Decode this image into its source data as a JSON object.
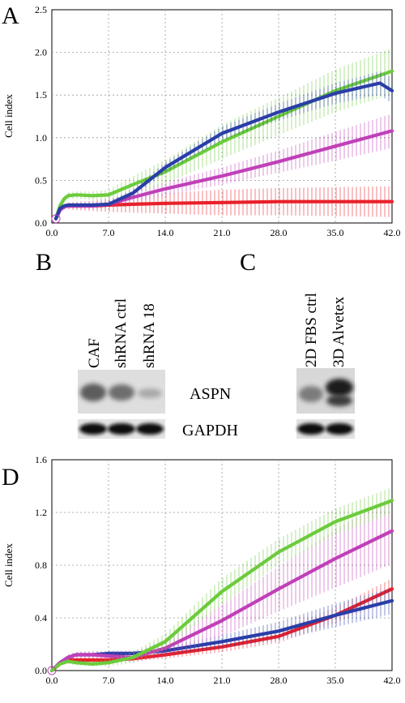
{
  "panels": {
    "A": "A",
    "B": "B",
    "C": "C",
    "D": "D"
  },
  "blots": {
    "B": {
      "lanes": [
        "CAF",
        "shRNA ctrl",
        "shRNA 18"
      ],
      "aspn_intensity": [
        0.75,
        0.65,
        0.3
      ],
      "gapdh_intensity": [
        1.0,
        1.0,
        1.0
      ]
    },
    "C": {
      "lanes": [
        "2D FBS ctrl",
        "3D Alvetex"
      ],
      "aspn_intensity": [
        0.55,
        1.0
      ],
      "gapdh_intensity": [
        1.0,
        1.0
      ]
    },
    "bands": [
      "ASPN",
      "GAPDH"
    ]
  },
  "chart_data": [
    {
      "panel": "A",
      "type": "line",
      "ylabel": "Cell index",
      "xlabel": "",
      "xlim": [
        0,
        42
      ],
      "ylim": [
        0,
        2.5
      ],
      "xticks": [
        "0.0",
        "7.0",
        "14.0",
        "21.0",
        "28.0",
        "35.0",
        "42.0"
      ],
      "yticks": [
        "0.0",
        "0.5",
        "1.0",
        "1.5",
        "2.0",
        "2.5"
      ],
      "grid": true,
      "series": [
        {
          "color": "#e8202a",
          "x": [
            0.5,
            1,
            1.5,
            2,
            3,
            5,
            7,
            10,
            14,
            21,
            28,
            35,
            42
          ],
          "y": [
            0.05,
            0.15,
            0.19,
            0.2,
            0.2,
            0.2,
            0.21,
            0.22,
            0.23,
            0.24,
            0.25,
            0.25,
            0.25
          ],
          "err": [
            0,
            0.02,
            0.03,
            0.04,
            0.05,
            0.06,
            0.08,
            0.1,
            0.12,
            0.15,
            0.16,
            0.17,
            0.18
          ]
        },
        {
          "color": "#c040b8",
          "x": [
            0.5,
            1,
            1.5,
            2,
            3,
            5,
            7,
            10,
            14,
            21,
            28,
            35,
            42
          ],
          "y": [
            0.05,
            0.15,
            0.19,
            0.2,
            0.2,
            0.2,
            0.22,
            0.3,
            0.4,
            0.55,
            0.72,
            0.9,
            1.08
          ],
          "err": [
            0,
            0.02,
            0.03,
            0.03,
            0.03,
            0.04,
            0.05,
            0.07,
            0.08,
            0.1,
            0.13,
            0.17,
            0.2
          ]
        },
        {
          "color": "#6ccb3c",
          "x": [
            0.5,
            1,
            1.5,
            2,
            3,
            5,
            7,
            10,
            14,
            21,
            28,
            35,
            42
          ],
          "y": [
            0.05,
            0.2,
            0.28,
            0.32,
            0.33,
            0.32,
            0.33,
            0.45,
            0.6,
            0.95,
            1.25,
            1.55,
            1.78
          ],
          "err": [
            0,
            0.02,
            0.03,
            0.04,
            0.04,
            0.05,
            0.06,
            0.1,
            0.14,
            0.2,
            0.22,
            0.25,
            0.27
          ]
        },
        {
          "color": "#2a3ea8",
          "x": [
            0.5,
            1,
            1.5,
            2,
            3,
            5,
            7,
            10,
            14,
            21,
            28,
            35,
            40.5,
            42
          ],
          "y": [
            0.05,
            0.17,
            0.2,
            0.21,
            0.21,
            0.21,
            0.22,
            0.35,
            0.65,
            1.05,
            1.3,
            1.52,
            1.64,
            1.55
          ],
          "err": [
            0,
            0.02,
            0.02,
            0.02,
            0.02,
            0.02,
            0.03,
            0.05,
            0.06,
            0.08,
            0.1,
            0.12,
            0.14,
            0.15
          ]
        }
      ]
    },
    {
      "panel": "D",
      "type": "line",
      "ylabel": "Cell index",
      "xlabel": "",
      "xlim": [
        0,
        42
      ],
      "ylim": [
        0,
        1.6
      ],
      "xticks": [
        "0.0",
        "7.0",
        "14.0",
        "21.0",
        "28.0",
        "35.0",
        "42.0"
      ],
      "yticks": [
        "0.0",
        "0.4",
        "0.8",
        "1.2",
        "1.6"
      ],
      "grid": true,
      "series": [
        {
          "color": "#e8202a",
          "x": [
            0,
            1,
            2,
            3,
            5,
            7,
            10,
            14,
            21,
            28,
            35,
            42
          ],
          "y": [
            0,
            0.05,
            0.08,
            0.08,
            0.08,
            0.08,
            0.09,
            0.12,
            0.18,
            0.26,
            0.42,
            0.62
          ],
          "err": [
            0,
            0.01,
            0.02,
            0.02,
            0.02,
            0.02,
            0.02,
            0.03,
            0.04,
            0.05,
            0.06,
            0.08
          ]
        },
        {
          "color": "#2a3ea8",
          "x": [
            0,
            1,
            2,
            3,
            5,
            7,
            10,
            14,
            21,
            28,
            35,
            42
          ],
          "y": [
            0,
            0.06,
            0.1,
            0.12,
            0.12,
            0.13,
            0.13,
            0.15,
            0.22,
            0.3,
            0.42,
            0.53
          ],
          "err": [
            0,
            0.01,
            0.02,
            0.02,
            0.02,
            0.02,
            0.02,
            0.03,
            0.05,
            0.07,
            0.09,
            0.1
          ]
        },
        {
          "color": "#c040b8",
          "x": [
            0,
            1,
            2,
            3,
            5,
            7,
            10,
            14,
            21,
            28,
            35,
            42
          ],
          "y": [
            0,
            0.06,
            0.1,
            0.12,
            0.12,
            0.11,
            0.1,
            0.17,
            0.38,
            0.62,
            0.85,
            1.06
          ],
          "err": [
            0,
            0.01,
            0.02,
            0.02,
            0.03,
            0.03,
            0.04,
            0.06,
            0.12,
            0.17,
            0.22,
            0.25
          ]
        },
        {
          "color": "#6ccb3c",
          "x": [
            0,
            1,
            2,
            3,
            5,
            7,
            10,
            14,
            21,
            28,
            35,
            42
          ],
          "y": [
            0,
            0.05,
            0.07,
            0.06,
            0.05,
            0.06,
            0.1,
            0.22,
            0.6,
            0.9,
            1.13,
            1.29
          ],
          "err": [
            0,
            0.01,
            0.02,
            0.02,
            0.02,
            0.03,
            0.04,
            0.06,
            0.1,
            0.1,
            0.1,
            0.1
          ]
        }
      ]
    }
  ]
}
